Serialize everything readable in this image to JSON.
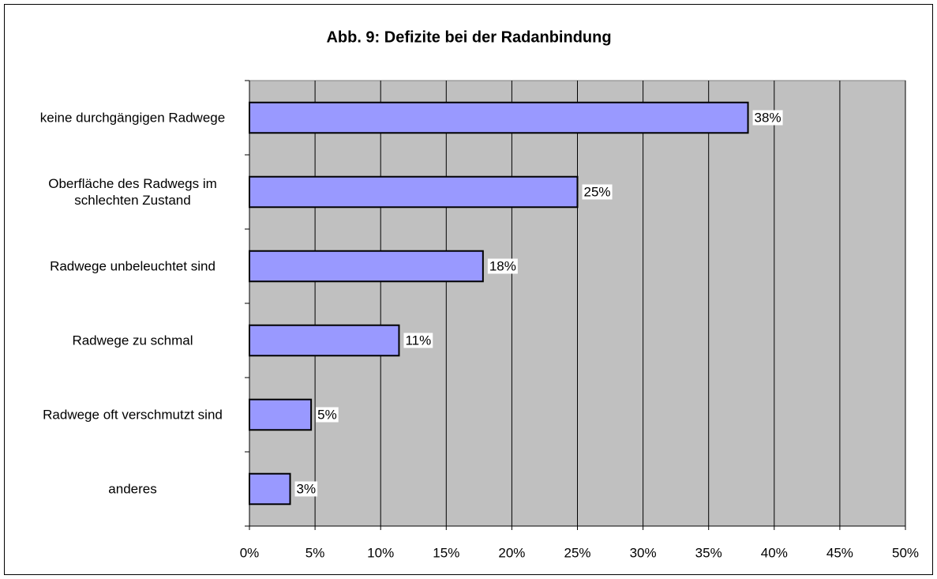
{
  "chart_data": {
    "type": "bar",
    "orientation": "horizontal",
    "title": "Abb. 9: Defizite bei der Radanbindung",
    "categories": [
      "keine durchgängigen Radwege",
      "Oberfläche des Radwegs im schlechten Zustand",
      "Radwege unbeleuchtet sind",
      "Radwege zu schmal",
      "Radwege oft verschmutzt sind",
      "anderes"
    ],
    "values": [
      38,
      25,
      17.8,
      11.4,
      4.7,
      3.1
    ],
    "value_labels": [
      "38%",
      "25%",
      "18%",
      "11%",
      "5%",
      "3%"
    ],
    "color": "#9999ff",
    "xlim": [
      0,
      50
    ],
    "xticks": [
      {
        "value": 0,
        "label": "0%"
      },
      {
        "value": 5,
        "label": "5%"
      },
      {
        "value": 10,
        "label": "10%"
      },
      {
        "value": 15,
        "label": "15%"
      },
      {
        "value": 20,
        "label": "20%"
      },
      {
        "value": 25,
        "label": "25%"
      },
      {
        "value": 30,
        "label": "30%"
      },
      {
        "value": 35,
        "label": "35%"
      },
      {
        "value": 40,
        "label": "40%"
      },
      {
        "value": 45,
        "label": "45%"
      },
      {
        "value": 50,
        "label": "50%"
      }
    ],
    "grid": true
  }
}
